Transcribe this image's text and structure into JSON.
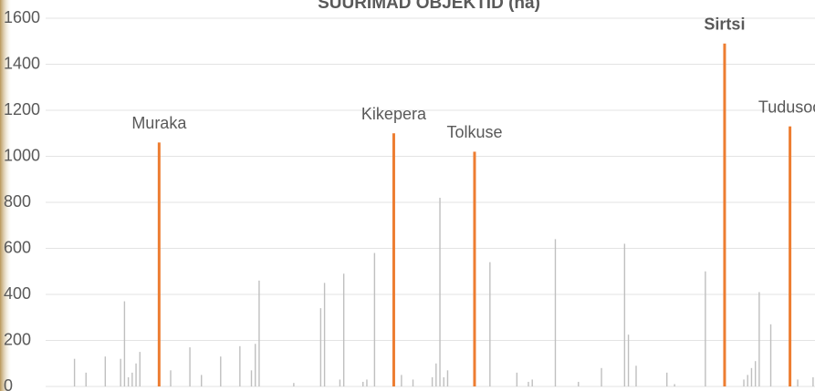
{
  "chart_data": {
    "type": "bar",
    "title": "SUURIMAD OBJEKTID (ha)",
    "categories": [
      null,
      null,
      null,
      null,
      null,
      null,
      null,
      null,
      null,
      null,
      null,
      null,
      null,
      null,
      null,
      null,
      null,
      null,
      null,
      null,
      null,
      null,
      null,
      null,
      null,
      null,
      null,
      null,
      null,
      "Muraka",
      null,
      null,
      null,
      null,
      null,
      null,
      null,
      null,
      null,
      null,
      null,
      null,
      null,
      null,
      null,
      null,
      null,
      null,
      null,
      null,
      null,
      null,
      null,
      null,
      null,
      null,
      null,
      null,
      null,
      null,
      null,
      null,
      null,
      null,
      null,
      null,
      null,
      null,
      null,
      null,
      null,
      null,
      null,
      null,
      null,
      null,
      null,
      null,
      null,
      null,
      null,
      null,
      null,
      null,
      null,
      null,
      null,
      null,
      null,
      null,
      "Kikepera",
      null,
      null,
      null,
      null,
      null,
      null,
      null,
      null,
      null,
      null,
      null,
      null,
      null,
      null,
      null,
      null,
      null,
      null,
      null,
      null,
      "Tolkuse",
      null,
      null,
      null,
      null,
      null,
      null,
      null,
      null,
      null,
      null,
      null,
      null,
      null,
      null,
      null,
      null,
      null,
      null,
      null,
      null,
      null,
      null,
      null,
      null,
      null,
      null,
      null,
      null,
      null,
      null,
      null,
      null,
      null,
      null,
      null,
      null,
      null,
      null,
      null,
      null,
      null,
      null,
      null,
      null,
      null,
      null,
      null,
      null,
      null,
      null,
      null,
      null,
      null,
      null,
      null,
      null,
      null,
      null,
      null,
      null,
      null,
      null,
      null,
      null,
      "Sirtsi",
      null,
      null,
      null,
      null,
      null,
      null,
      null,
      null,
      null,
      null,
      null,
      null,
      null,
      null,
      null,
      null,
      "Tudusoo",
      null,
      null,
      null,
      null,
      null,
      null
    ],
    "values": [
      null,
      null,
      null,
      null,
      null,
      null,
      null,
      120,
      null,
      null,
      60,
      null,
      null,
      null,
      null,
      130,
      null,
      null,
      null,
      120,
      370,
      40,
      60,
      100,
      150,
      null,
      null,
      null,
      null,
      1060,
      null,
      null,
      70,
      null,
      null,
      null,
      null,
      170,
      null,
      null,
      50,
      null,
      null,
      null,
      null,
      130,
      null,
      null,
      null,
      null,
      175,
      null,
      null,
      70,
      185,
      460,
      null,
      null,
      null,
      null,
      null,
      null,
      null,
      null,
      15,
      null,
      null,
      null,
      null,
      null,
      null,
      340,
      450,
      null,
      null,
      null,
      30,
      490,
      null,
      null,
      null,
      null,
      20,
      30,
      null,
      580,
      null,
      null,
      null,
      null,
      1100,
      null,
      50,
      null,
      null,
      30,
      null,
      null,
      null,
      null,
      40,
      100,
      820,
      40,
      70,
      null,
      null,
      null,
      null,
      null,
      null,
      1020,
      null,
      null,
      null,
      540,
      null,
      null,
      null,
      null,
      null,
      null,
      60,
      null,
      null,
      20,
      30,
      null,
      null,
      null,
      null,
      null,
      640,
      null,
      null,
      null,
      null,
      null,
      20,
      null,
      null,
      null,
      null,
      null,
      80,
      null,
      null,
      null,
      null,
      null,
      620,
      225,
      null,
      90,
      null,
      null,
      null,
      null,
      null,
      null,
      null,
      60,
      null,
      10,
      null,
      null,
      null,
      null,
      null,
      null,
      null,
      500,
      null,
      null,
      null,
      null,
      1490,
      null,
      null,
      null,
      null,
      30,
      50,
      80,
      110,
      410,
      null,
      null,
      270,
      null,
      null,
      null,
      null,
      1130,
      null,
      30,
      null,
      null,
      null,
      40
    ],
    "color": "#bfbfbf",
    "highlight_color": "#ed7d31",
    "ylim": [
      0,
      1600
    ],
    "yticks": [
      0,
      200,
      400,
      600,
      800,
      1000,
      1200,
      1400,
      1600
    ],
    "grid": true
  }
}
